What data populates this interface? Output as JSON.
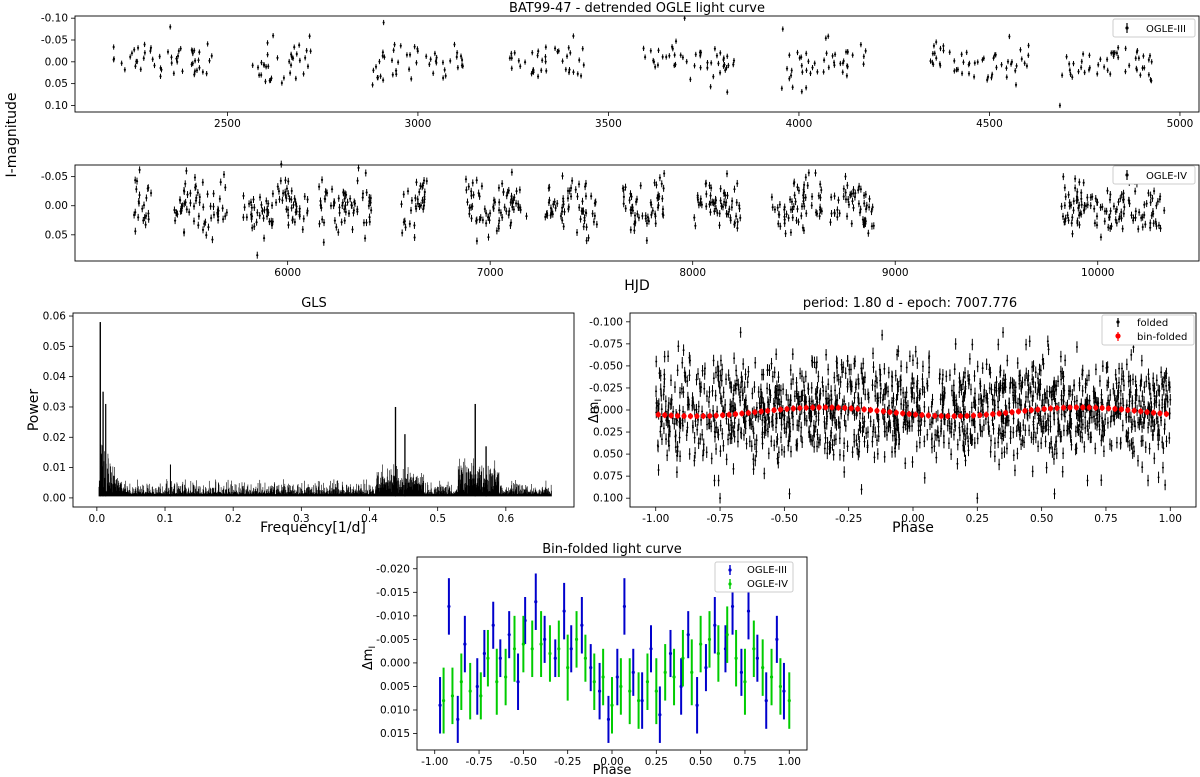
{
  "figure": {
    "shared_ylabel": "I-magnitude",
    "shared_xlabel": "HJD"
  },
  "chart_data": [
    {
      "type": "scatter",
      "title": "BAT99-47 - detrended OGLE light curve",
      "series": [
        {
          "name": "OGLE-III",
          "color": "#000000"
        }
      ],
      "xlim": [
        2100,
        5050
      ],
      "ylim": [
        0.115,
        -0.105
      ],
      "xticks": [
        2500,
        3000,
        3500,
        4000,
        4500,
        5000
      ],
      "yticks": [
        -0.1,
        -0.05,
        0.0,
        0.05,
        0.1
      ],
      "ytick_labels": [
        "-0.10",
        "-0.05",
        "0.00",
        "0.05",
        "0.10"
      ],
      "segments": [
        [
          2200,
          2460
        ],
        [
          2545,
          2720
        ],
        [
          2880,
          3120
        ],
        [
          3240,
          3440
        ],
        [
          3590,
          3830
        ],
        [
          3955,
          4190
        ],
        [
          4340,
          4610
        ],
        [
          4690,
          4940
        ]
      ],
      "sample": {
        "x": [
          2350,
          2620,
          2910,
          3700,
          4685
        ],
        "y": [
          -0.08,
          -0.06,
          -0.09,
          -0.1,
          0.1
        ]
      }
    },
    {
      "type": "scatter",
      "series": [
        {
          "name": "OGLE-IV",
          "color": "#000000"
        }
      ],
      "xlim": [
        4950,
        10500
      ],
      "ylim": [
        0.095,
        -0.07
      ],
      "xticks": [
        6000,
        7000,
        8000,
        9000,
        10000
      ],
      "yticks": [
        -0.05,
        0.0,
        0.05
      ],
      "ytick_labels": [
        "-0.05",
        "0.00",
        "0.05"
      ],
      "segments": [
        [
          5240,
          5330
        ],
        [
          5440,
          5700
        ],
        [
          5780,
          6100
        ],
        [
          6150,
          6420
        ],
        [
          6560,
          6690
        ],
        [
          6880,
          7180
        ],
        [
          7270,
          7530
        ],
        [
          7640,
          7860
        ],
        [
          8000,
          8240
        ],
        [
          8390,
          8640
        ],
        [
          8680,
          8900
        ],
        [
          9820,
          10330
        ]
      ],
      "sample": {
        "x": [
          5500,
          5850,
          6350,
          9830,
          10200
        ],
        "y": [
          -0.06,
          0.085,
          -0.065,
          -0.05,
          0.04
        ]
      }
    },
    {
      "type": "line",
      "title": "GLS",
      "xlabel": "Frequency[1/d]",
      "ylabel": "Power",
      "xlim": [
        -0.035,
        0.7
      ],
      "ylim": [
        -0.003,
        0.061
      ],
      "xticks": [
        0.0,
        0.1,
        0.2,
        0.3,
        0.4,
        0.5,
        0.6
      ],
      "xtick_labels": [
        "0.0",
        "0.1",
        "0.2",
        "0.3",
        "0.4",
        "0.5",
        "0.6"
      ],
      "yticks": [
        0.0,
        0.01,
        0.02,
        0.03,
        0.04,
        0.05,
        0.06
      ],
      "ytick_labels": [
        "0.00",
        "0.01",
        "0.02",
        "0.03",
        "0.04",
        "0.05",
        "0.06"
      ],
      "frequency_range": [
        0.003,
        0.667
      ],
      "peaks": [
        {
          "f": 0.005,
          "power": 0.058
        },
        {
          "f": 0.009,
          "power": 0.035
        },
        {
          "f": 0.013,
          "power": 0.031
        },
        {
          "f": 0.108,
          "power": 0.011
        },
        {
          "f": 0.438,
          "power": 0.03
        },
        {
          "f": 0.452,
          "power": 0.021
        },
        {
          "f": 0.555,
          "power": 0.031
        },
        {
          "f": 0.571,
          "power": 0.017
        }
      ]
    },
    {
      "type": "scatter",
      "title": "period: 1.80 d - epoch: 7007.776",
      "xlabel": "Phase",
      "ylabel": "Δm",
      "ylabel_subscript": "I",
      "xlim": [
        -1.1,
        1.1
      ],
      "ylim": [
        0.11,
        -0.11
      ],
      "xticks": [
        -1.0,
        -0.75,
        -0.5,
        -0.25,
        0.0,
        0.25,
        0.5,
        0.75,
        1.0
      ],
      "xtick_labels": [
        "-1.00",
        "-0.75",
        "-0.50",
        "-0.25",
        "0.00",
        "0.25",
        "0.50",
        "0.75",
        "1.00"
      ],
      "yticks": [
        -0.1,
        -0.075,
        -0.05,
        -0.025,
        0.0,
        0.025,
        0.05,
        0.075,
        0.1
      ],
      "ytick_labels": [
        "-0.100",
        "-0.075",
        "-0.050",
        "-0.025",
        "0.000",
        "0.025",
        "0.050",
        "0.075",
        "0.100"
      ],
      "series": [
        {
          "name": "folded",
          "color": "#000000"
        },
        {
          "name": "bin-folded",
          "color": "#ff0000"
        }
      ],
      "outliers": {
        "x": [
          -0.67,
          -0.75,
          -0.48,
          -0.2,
          -0.12,
          0.35,
          0.25,
          0.55,
          0.98
        ],
        "y": [
          -0.088,
          0.1,
          0.095,
          0.09,
          -0.085,
          -0.088,
          0.1,
          0.095,
          0.085
        ]
      }
    },
    {
      "type": "scatter",
      "title": "Bin-folded light curve",
      "xlabel": "Phase",
      "ylabel": "Δm",
      "ylabel_subscript": "I",
      "xlim": [
        -1.1,
        1.1
      ],
      "ylim": [
        0.0185,
        -0.0225
      ],
      "xticks": [
        -1.0,
        -0.75,
        -0.5,
        -0.25,
        0.0,
        0.25,
        0.5,
        0.75,
        1.0
      ],
      "xtick_labels": [
        "-1.00",
        "-0.75",
        "-0.50",
        "-0.25",
        "0.00",
        "0.25",
        "0.50",
        "0.75",
        "1.00"
      ],
      "yticks": [
        -0.02,
        -0.015,
        -0.01,
        -0.005,
        0.0,
        0.005,
        0.01,
        0.015
      ],
      "ytick_labels": [
        "-0.020",
        "-0.015",
        "-0.010",
        "-0.005",
        "0.000",
        "0.005",
        "0.010",
        "0.015"
      ],
      "series": [
        {
          "name": "OGLE-III",
          "color": "#0000cc",
          "x": [
            -0.97,
            -0.92,
            -0.87,
            -0.83,
            -0.76,
            -0.72,
            -0.67,
            -0.63,
            -0.58,
            -0.53,
            -0.49,
            -0.43,
            -0.38,
            -0.32,
            -0.27,
            -0.23,
            -0.17,
            -0.12,
            -0.07,
            -0.02,
            0.03,
            0.07,
            0.12,
            0.17,
            0.22,
            0.27,
            0.33,
            0.39,
            0.43,
            0.48,
            0.53,
            0.58,
            0.64,
            0.68,
            0.73,
            0.77,
            0.82,
            0.87,
            0.93,
            0.97
          ],
          "y": [
            0.009,
            -0.012,
            0.012,
            -0.004,
            0.005,
            -0.002,
            -0.008,
            -0.001,
            -0.006,
            0.004,
            -0.009,
            -0.013,
            -0.005,
            -0.001,
            -0.011,
            -0.003,
            -0.008,
            0.001,
            0.006,
            0.012,
            0.003,
            -0.012,
            0.002,
            0.008,
            -0.003,
            0.011,
            -0.002,
            0.005,
            -0.006,
            0.009,
            0.001,
            -0.008,
            -0.003,
            -0.012,
            0.002,
            -0.011,
            -0.001,
            0.008,
            -0.005,
            0.006
          ],
          "err": [
            0.006,
            0.006,
            0.005,
            0.006,
            0.006,
            0.005,
            0.005,
            0.004,
            0.005,
            0.006,
            0.005,
            0.006,
            0.005,
            0.004,
            0.006,
            0.005,
            0.006,
            0.005,
            0.006,
            0.005,
            0.006,
            0.006,
            0.005,
            0.006,
            0.005,
            0.006,
            0.005,
            0.006,
            0.005,
            0.006,
            0.005,
            0.006,
            0.005,
            0.006,
            0.005,
            0.006,
            0.005,
            0.006,
            0.005,
            0.006
          ]
        },
        {
          "name": "OGLE-IV",
          "color": "#00cc00",
          "x": [
            -0.95,
            -0.9,
            -0.85,
            -0.8,
            -0.74,
            -0.7,
            -0.65,
            -0.6,
            -0.55,
            -0.5,
            -0.45,
            -0.4,
            -0.35,
            -0.3,
            -0.25,
            -0.2,
            -0.15,
            -0.1,
            -0.05,
            0.0,
            0.05,
            0.1,
            0.15,
            0.2,
            0.25,
            0.3,
            0.35,
            0.4,
            0.45,
            0.5,
            0.55,
            0.6,
            0.65,
            0.7,
            0.75,
            0.8,
            0.85,
            0.9,
            0.95,
            1.0
          ],
          "y": [
            0.008,
            0.007,
            0.004,
            0.006,
            0.007,
            -0.001,
            0.004,
            0.003,
            -0.003,
            -0.004,
            -0.003,
            -0.004,
            -0.002,
            -0.003,
            0.001,
            -0.005,
            -0.001,
            0.004,
            0.003,
            0.009,
            0.005,
            0.006,
            0.008,
            0.004,
            0.006,
            0.002,
            0.003,
            -0.001,
            0.002,
            -0.004,
            -0.005,
            -0.002,
            -0.006,
            -0.001,
            0.004,
            -0.003,
            0.001,
            0.003,
            0.005,
            0.008
          ],
          "err": [
            0.007,
            0.006,
            0.006,
            0.006,
            0.005,
            0.006,
            0.007,
            0.006,
            0.007,
            0.006,
            0.006,
            0.007,
            0.006,
            0.006,
            0.007,
            0.006,
            0.005,
            0.006,
            0.006,
            0.006,
            0.006,
            0.007,
            0.006,
            0.006,
            0.007,
            0.006,
            0.006,
            0.006,
            0.007,
            0.006,
            0.006,
            0.006,
            0.006,
            0.006,
            0.007,
            0.006,
            0.006,
            0.006,
            0.006,
            0.006
          ]
        }
      ]
    }
  ]
}
